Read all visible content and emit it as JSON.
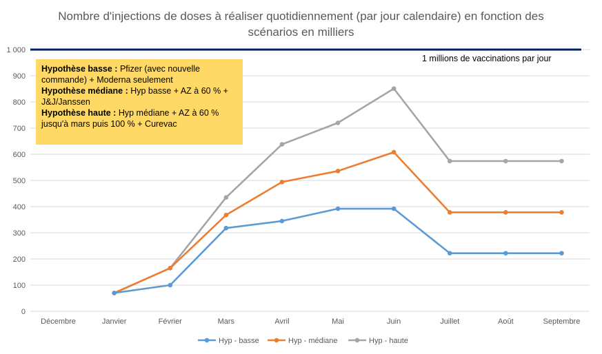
{
  "chart_data": {
    "type": "line",
    "title": "Nombre d'injections de doses à réaliser quotidiennement (par jour calendaire) en fonction des scénarios en milliers",
    "xlabel": "",
    "ylabel": "",
    "ylim": [
      0,
      1000
    ],
    "yticks": [
      "0",
      "100",
      "200",
      "300",
      "400",
      "500",
      "600",
      "700",
      "800",
      "900",
      "1 000"
    ],
    "categories": [
      "Décembre",
      "Janvier",
      "Février",
      "Mars",
      "Avril",
      "Mai",
      "Juin",
      "Juillet",
      "Août",
      "Septembre"
    ],
    "series": [
      {
        "name": "Hyp - basse",
        "color": "#5b9bd5",
        "values": [
          null,
          70,
          100,
          318,
          345,
          392,
          392,
          222,
          222,
          222
        ]
      },
      {
        "name": "Hyp - médiane",
        "color": "#ed7d31",
        "values": [
          null,
          70,
          165,
          368,
          494,
          536,
          608,
          378,
          378,
          378
        ]
      },
      {
        "name": "Hyp - haute",
        "color": "#a5a5a5",
        "values": [
          null,
          70,
          165,
          435,
          638,
          720,
          851,
          574,
          574,
          574
        ]
      }
    ],
    "reference_line": {
      "value": 1000,
      "color": "#002060",
      "label": "1 millions de vaccinations par jour"
    },
    "grid": true,
    "legend_position": "bottom"
  },
  "annotation": {
    "lines": [
      {
        "bold": "Hypothèse basse :",
        "text": " Pfizer (avec nouvelle commande) + Moderna seulement"
      },
      {
        "bold": "Hypothèse médiane :",
        "text": " Hyp basse + AZ à 60 % + J&J/Janssen"
      },
      {
        "bold": "Hypothèse haute :",
        "text": " Hyp médiane + AZ à 60 % jusqu'à mars puis 100 % + Curevac"
      }
    ]
  }
}
